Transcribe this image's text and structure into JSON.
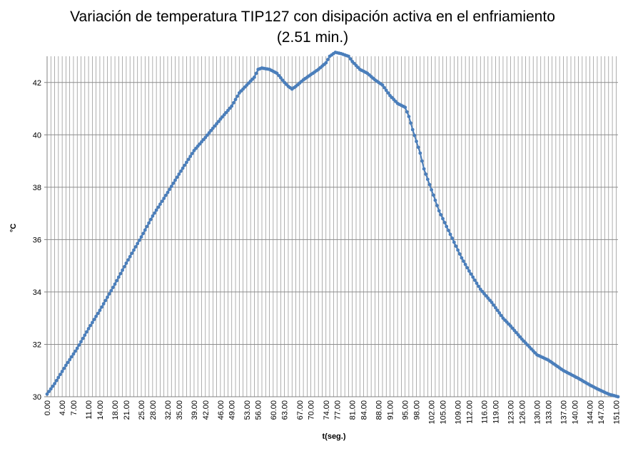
{
  "chart_data": {
    "type": "line",
    "title_line1": "Variación de temperatura TIP127 con disipación activa en el enfriamiento",
    "title_line2": "(2.51 min.)",
    "xlabel": "t(seg.)",
    "ylabel": "°C",
    "ylim": [
      30,
      43
    ],
    "xlim": [
      0,
      151.5
    ],
    "y_ticks": [
      "30",
      "32",
      "34",
      "36",
      "38",
      "40",
      "42"
    ],
    "x_ticks": [
      "0.00",
      "4.00",
      "7.00",
      "11.00",
      "14.00",
      "18.00",
      "21.00",
      "25.00",
      "28.00",
      "32.00",
      "35.00",
      "39.00",
      "42.00",
      "46.00",
      "49.00",
      "53.00",
      "56.00",
      "60.00",
      "63.00",
      "67.00",
      "70.00",
      "74.00",
      "77.00",
      "81.00",
      "84.00",
      "88.00",
      "91.00",
      "95.00",
      "98.00",
      "102.00",
      "105.00",
      "109.00",
      "112.00",
      "116.00",
      "119.00",
      "123.00",
      "126.00",
      "130.00",
      "133.00",
      "137.00",
      "140.00",
      "144.00",
      "147.00",
      "151.00"
    ],
    "grid": "vertical and horizontal",
    "line_color": "#4a7ebb",
    "key_points": [
      [
        0,
        30.1
      ],
      [
        2,
        30.5
      ],
      [
        5,
        31.2
      ],
      [
        8,
        31.85
      ],
      [
        11,
        32.6
      ],
      [
        14,
        33.3
      ],
      [
        18,
        34.3
      ],
      [
        21,
        35.1
      ],
      [
        25,
        36.1
      ],
      [
        28,
        36.9
      ],
      [
        32,
        37.8
      ],
      [
        35,
        38.5
      ],
      [
        39,
        39.4
      ],
      [
        42,
        39.9
      ],
      [
        46,
        40.6
      ],
      [
        49,
        41.1
      ],
      [
        51,
        41.6
      ],
      [
        53,
        41.9
      ],
      [
        55,
        42.2
      ],
      [
        56,
        42.5
      ],
      [
        57,
        42.55
      ],
      [
        59,
        42.5
      ],
      [
        61,
        42.35
      ],
      [
        63,
        42.0
      ],
      [
        64,
        41.85
      ],
      [
        65,
        41.75
      ],
      [
        66,
        41.85
      ],
      [
        68,
        42.1
      ],
      [
        70,
        42.3
      ],
      [
        72,
        42.5
      ],
      [
        74,
        42.75
      ],
      [
        75,
        43.0
      ],
      [
        76.5,
        43.15
      ],
      [
        78,
        43.1
      ],
      [
        80,
        43.0
      ],
      [
        81,
        42.8
      ],
      [
        83,
        42.5
      ],
      [
        85,
        42.35
      ],
      [
        87,
        42.1
      ],
      [
        89,
        41.9
      ],
      [
        90,
        41.7
      ],
      [
        91,
        41.5
      ],
      [
        93,
        41.2
      ],
      [
        95,
        41.05
      ],
      [
        96,
        40.7
      ],
      [
        97,
        40.2
      ],
      [
        99,
        39.3
      ],
      [
        100,
        38.7
      ],
      [
        102,
        37.9
      ],
      [
        104,
        37.1
      ],
      [
        106,
        36.5
      ],
      [
        108,
        35.9
      ],
      [
        110,
        35.3
      ],
      [
        112,
        34.8
      ],
      [
        115,
        34.1
      ],
      [
        118,
        33.6
      ],
      [
        121,
        33.0
      ],
      [
        123,
        32.7
      ],
      [
        126,
        32.2
      ],
      [
        128,
        31.9
      ],
      [
        130,
        31.6
      ],
      [
        133,
        31.4
      ],
      [
        135,
        31.2
      ],
      [
        137,
        31.0
      ],
      [
        139,
        30.85
      ],
      [
        141,
        30.7
      ],
      [
        144,
        30.45
      ],
      [
        146,
        30.3
      ],
      [
        149,
        30.1
      ],
      [
        151.5,
        30.0
      ]
    ]
  }
}
